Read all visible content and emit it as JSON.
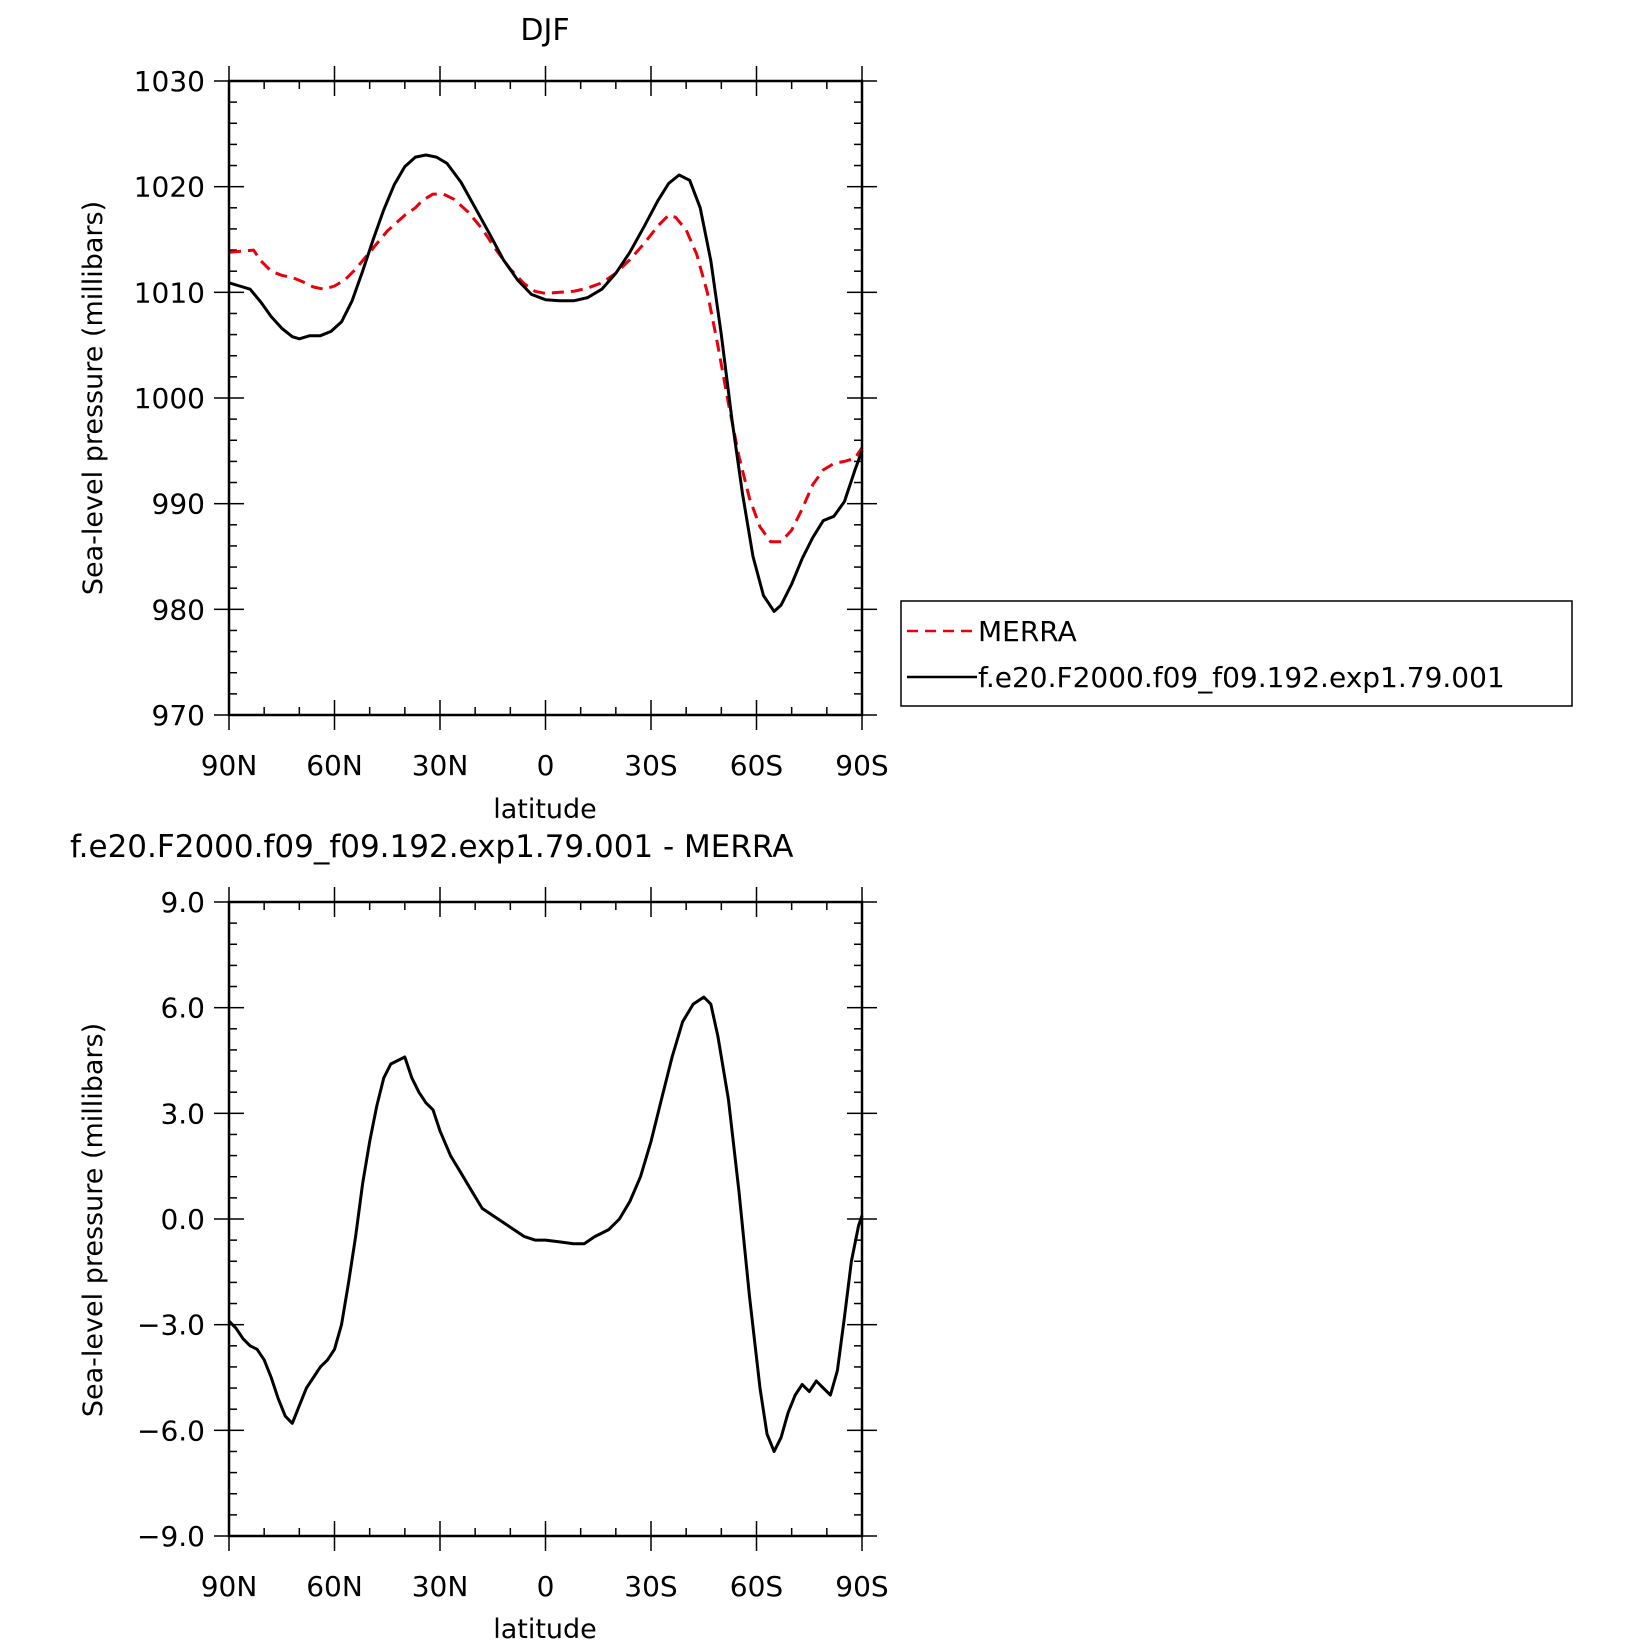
{
  "chart_data": [
    {
      "type": "line",
      "title": "DJF",
      "xlabel": "latitude",
      "ylabel": "Sea-level pressure (millibars)",
      "xlim": [
        90,
        -90
      ],
      "ylim": [
        970,
        1030
      ],
      "x_ticks": [
        90,
        60,
        30,
        0,
        -30,
        -60,
        -90
      ],
      "x_tick_labels": [
        "90N",
        "60N",
        "30N",
        "0",
        "30S",
        "60S",
        "90S"
      ],
      "y_ticks": [
        970,
        980,
        990,
        1000,
        1010,
        1020,
        1030
      ],
      "y_tick_labels": [
        "970",
        "980",
        "990",
        "1000",
        "1010",
        "1020",
        "1030"
      ],
      "legend_position": "right",
      "series": [
        {
          "name": "MERRA",
          "color": "#e8000b",
          "style": "dashed",
          "points": [
            [
              90,
              1013.8
            ],
            [
              86,
              1013.9
            ],
            [
              83,
              1014.0
            ],
            [
              81,
              1013.0
            ],
            [
              78,
              1012.0
            ],
            [
              75,
              1011.6
            ],
            [
              72,
              1011.4
            ],
            [
              69,
              1011.0
            ],
            [
              66,
              1010.5
            ],
            [
              63,
              1010.3
            ],
            [
              60,
              1010.6
            ],
            [
              57,
              1011.2
            ],
            [
              54,
              1012.2
            ],
            [
              50,
              1013.8
            ],
            [
              45,
              1015.8
            ],
            [
              40,
              1017.3
            ],
            [
              37,
              1018.0
            ],
            [
              35,
              1018.7
            ],
            [
              32,
              1019.3
            ],
            [
              29,
              1019.3
            ],
            [
              26,
              1018.8
            ],
            [
              22,
              1017.6
            ],
            [
              18,
              1016.0
            ],
            [
              14,
              1014.0
            ],
            [
              10,
              1012.2
            ],
            [
              6,
              1010.8
            ],
            [
              3,
              1010.1
            ],
            [
              0,
              1009.9
            ],
            [
              -4,
              1010.0
            ],
            [
              -8,
              1010.1
            ],
            [
              -12,
              1010.4
            ],
            [
              -16,
              1010.9
            ],
            [
              -20,
              1011.8
            ],
            [
              -24,
              1013.1
            ],
            [
              -28,
              1014.6
            ],
            [
              -32,
              1016.3
            ],
            [
              -35,
              1017.3
            ],
            [
              -37,
              1017.1
            ],
            [
              -40,
              1015.9
            ],
            [
              -43,
              1013.6
            ],
            [
              -46,
              1010.0
            ],
            [
              -49,
              1005.0
            ],
            [
              -52,
              999.5
            ],
            [
              -55,
              994.5
            ],
            [
              -58,
              990.5
            ],
            [
              -61,
              987.8
            ],
            [
              -64,
              986.4
            ],
            [
              -67,
              986.4
            ],
            [
              -70,
              987.5
            ],
            [
              -73,
              989.5
            ],
            [
              -76,
              991.8
            ],
            [
              -79,
              993.2
            ],
            [
              -82,
              993.8
            ],
            [
              -85,
              994.0
            ],
            [
              -88,
              994.3
            ],
            [
              -90,
              995.3
            ]
          ]
        },
        {
          "name": "f.e20.F2000.f09_f09.192.exp1.79.001",
          "color": "#000000",
          "style": "solid",
          "points": [
            [
              90,
              1010.9
            ],
            [
              87,
              1010.6
            ],
            [
              84,
              1010.3
            ],
            [
              81,
              1009.1
            ],
            [
              78,
              1007.7
            ],
            [
              75,
              1006.6
            ],
            [
              72,
              1005.8
            ],
            [
              70,
              1005.6
            ],
            [
              67,
              1005.9
            ],
            [
              64,
              1005.9
            ],
            [
              61,
              1006.3
            ],
            [
              58,
              1007.2
            ],
            [
              55,
              1009.2
            ],
            [
              52,
              1012.0
            ],
            [
              49,
              1015.0
            ],
            [
              46,
              1017.8
            ],
            [
              43,
              1020.2
            ],
            [
              40,
              1021.9
            ],
            [
              37,
              1022.8
            ],
            [
              34,
              1023.0
            ],
            [
              31,
              1022.8
            ],
            [
              28,
              1022.2
            ],
            [
              24,
              1020.4
            ],
            [
              20,
              1018.0
            ],
            [
              16,
              1015.6
            ],
            [
              12,
              1013.1
            ],
            [
              8,
              1011.2
            ],
            [
              4,
              1009.8
            ],
            [
              0,
              1009.3
            ],
            [
              -4,
              1009.2
            ],
            [
              -8,
              1009.2
            ],
            [
              -12,
              1009.5
            ],
            [
              -16,
              1010.3
            ],
            [
              -20,
              1011.8
            ],
            [
              -24,
              1013.8
            ],
            [
              -28,
              1016.2
            ],
            [
              -32,
              1018.7
            ],
            [
              -35,
              1020.3
            ],
            [
              -38,
              1021.1
            ],
            [
              -41,
              1020.6
            ],
            [
              -44,
              1018.0
            ],
            [
              -47,
              1013.0
            ],
            [
              -50,
              1006.0
            ],
            [
              -53,
              998.0
            ],
            [
              -56,
              991.0
            ],
            [
              -59,
              985.0
            ],
            [
              -62,
              981.3
            ],
            [
              -65,
              979.8
            ],
            [
              -67,
              980.4
            ],
            [
              -70,
              982.4
            ],
            [
              -73,
              984.8
            ],
            [
              -76,
              986.8
            ],
            [
              -79,
              988.4
            ],
            [
              -82,
              988.8
            ],
            [
              -85,
              990.2
            ],
            [
              -88,
              993.2
            ],
            [
              -90,
              995.0
            ]
          ]
        }
      ]
    },
    {
      "type": "line",
      "title": "f.e20.F2000.f09_f09.192.exp1.79.001 - MERRA",
      "xlabel": "latitude",
      "ylabel": "Sea-level pressure (millibars)",
      "xlim": [
        90,
        -90
      ],
      "ylim": [
        -9,
        9
      ],
      "x_ticks": [
        90,
        60,
        30,
        0,
        -30,
        -60,
        -90
      ],
      "x_tick_labels": [
        "90N",
        "60N",
        "30N",
        "0",
        "30S",
        "60S",
        "90S"
      ],
      "y_ticks": [
        -9,
        -6,
        -3,
        0,
        3,
        6,
        9
      ],
      "y_tick_labels": [
        "-9.0",
        "-6.0",
        "-3.0",
        "0.0",
        "3.0",
        "6.0",
        "9.0"
      ],
      "series": [
        {
          "color": "#000000",
          "style": "solid",
          "points": [
            [
              90,
              -2.9
            ],
            [
              88,
              -3.1
            ],
            [
              86,
              -3.4
            ],
            [
              84,
              -3.6
            ],
            [
              82,
              -3.7
            ],
            [
              80,
              -4.0
            ],
            [
              78,
              -4.5
            ],
            [
              76,
              -5.1
            ],
            [
              74,
              -5.6
            ],
            [
              72,
              -5.8
            ],
            [
              70,
              -5.3
            ],
            [
              68,
              -4.8
            ],
            [
              66,
              -4.5
            ],
            [
              64,
              -4.2
            ],
            [
              62,
              -4.0
            ],
            [
              60,
              -3.7
            ],
            [
              58,
              -3.0
            ],
            [
              56,
              -1.8
            ],
            [
              54,
              -0.5
            ],
            [
              52,
              1.0
            ],
            [
              50,
              2.2
            ],
            [
              48,
              3.2
            ],
            [
              46,
              4.0
            ],
            [
              44,
              4.4
            ],
            [
              42,
              4.5
            ],
            [
              40,
              4.6
            ],
            [
              38,
              4.0
            ],
            [
              36,
              3.6
            ],
            [
              34,
              3.3
            ],
            [
              32,
              3.1
            ],
            [
              30,
              2.5
            ],
            [
              27,
              1.8
            ],
            [
              24,
              1.3
            ],
            [
              21,
              0.8
            ],
            [
              18,
              0.3
            ],
            [
              15,
              0.1
            ],
            [
              12,
              -0.1
            ],
            [
              9,
              -0.3
            ],
            [
              6,
              -0.5
            ],
            [
              3,
              -0.6
            ],
            [
              0,
              -0.6
            ],
            [
              -4,
              -0.65
            ],
            [
              -8,
              -0.7
            ],
            [
              -11,
              -0.7
            ],
            [
              -14,
              -0.5
            ],
            [
              -18,
              -0.3
            ],
            [
              -21,
              0.0
            ],
            [
              -24,
              0.5
            ],
            [
              -27,
              1.2
            ],
            [
              -30,
              2.2
            ],
            [
              -33,
              3.4
            ],
            [
              -36,
              4.6
            ],
            [
              -39,
              5.6
            ],
            [
              -42,
              6.1
            ],
            [
              -45,
              6.3
            ],
            [
              -47,
              6.1
            ],
            [
              -49,
              5.2
            ],
            [
              -52,
              3.4
            ],
            [
              -55,
              0.8
            ],
            [
              -58,
              -2.2
            ],
            [
              -61,
              -4.8
            ],
            [
              -63,
              -6.1
            ],
            [
              -65,
              -6.6
            ],
            [
              -67,
              -6.2
            ],
            [
              -69,
              -5.5
            ],
            [
              -71,
              -5.0
            ],
            [
              -73,
              -4.7
            ],
            [
              -75,
              -4.9
            ],
            [
              -77,
              -4.6
            ],
            [
              -79,
              -4.8
            ],
            [
              -81,
              -5.0
            ],
            [
              -83,
              -4.3
            ],
            [
              -85,
              -2.8
            ],
            [
              -87,
              -1.2
            ],
            [
              -89,
              -0.2
            ],
            [
              -90,
              0.1
            ]
          ]
        }
      ]
    }
  ]
}
